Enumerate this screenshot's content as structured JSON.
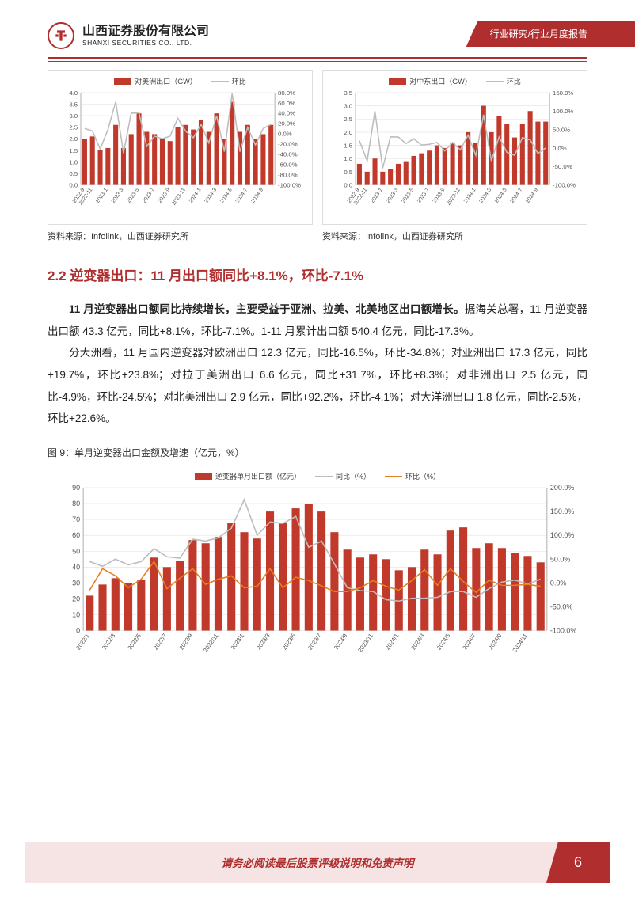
{
  "header": {
    "company_cn": "山西证券股份有限公司",
    "company_en": "SHANXI SECURITIES CO., LTD.",
    "banner": "行业研究/行业月度报告"
  },
  "colors": {
    "brand": "#b02e2e",
    "bar": "#c0392b",
    "grid": "#e0e0e0",
    "axis": "#888888",
    "line_grey": "#bdbdbd",
    "line_orange": "#e67e22",
    "text": "#333333",
    "footer_bg": "#f6e3e3"
  },
  "chart_left": {
    "type": "bar+line",
    "legend_bar": "对美洲出口（GW）",
    "legend_line": "环比",
    "y_left": {
      "min": 0,
      "max": 4,
      "step": 0.5
    },
    "y_right": {
      "min": -100,
      "max": 80,
      "step": 20,
      "suffix": "%"
    },
    "categories": [
      "2022-9",
      "2022-11",
      "",
      "2023-1",
      "",
      "2023-3",
      "",
      "2023-5",
      "",
      "2023-7",
      "",
      "2023-9",
      "",
      "2023-11",
      "",
      "2024-1",
      "",
      "2024-3",
      "",
      "2024-5",
      "",
      "2024-7",
      "",
      "2024-9",
      ""
    ],
    "bars": [
      2.0,
      2.1,
      1.5,
      1.6,
      2.6,
      1.6,
      2.2,
      3.1,
      2.3,
      2.2,
      2.0,
      1.9,
      2.5,
      2.6,
      2.4,
      2.8,
      2.3,
      3.1,
      2.0,
      3.6,
      2.3,
      2.6,
      2.0,
      2.2,
      2.6
    ],
    "line": [
      10,
      5,
      -30,
      8,
      62,
      -38,
      40,
      40,
      -25,
      -5,
      -10,
      -5,
      30,
      5,
      -8,
      18,
      -18,
      35,
      -35,
      78,
      -35,
      12,
      -22,
      10,
      18
    ],
    "x_label_fontsize": 7,
    "tick_fontsize": 8,
    "bar_color": "#c0392b",
    "line_color": "#bdbdbd",
    "grid_color": "#e0e0e0"
  },
  "chart_right": {
    "type": "bar+line",
    "legend_bar": "对中东出口（GW）",
    "legend_line": "环比",
    "y_left": {
      "min": 0,
      "max": 3.5,
      "step": 0.5
    },
    "y_right": {
      "min": -100,
      "max": 150,
      "step": 50,
      "suffix": "%"
    },
    "categories": [
      "2022-9",
      "2022-11",
      "",
      "2023-1",
      "",
      "2023-3",
      "",
      "2023-5",
      "",
      "2023-7",
      "",
      "2023-9",
      "",
      "2023-11",
      "",
      "2024-1",
      "",
      "2024-3",
      "",
      "2024-5",
      "",
      "2024-7",
      "",
      "2024-9",
      ""
    ],
    "bars": [
      0.8,
      0.5,
      1.0,
      0.5,
      0.6,
      0.8,
      0.9,
      1.1,
      1.2,
      1.3,
      1.5,
      1.4,
      1.6,
      1.5,
      2.0,
      1.6,
      3.0,
      2.0,
      2.6,
      2.3,
      1.8,
      2.3,
      2.8,
      2.4,
      2.4
    ],
    "line": [
      20,
      -35,
      100,
      -55,
      30,
      30,
      12,
      25,
      8,
      10,
      15,
      -8,
      15,
      -5,
      35,
      -20,
      90,
      -35,
      30,
      -12,
      -20,
      28,
      22,
      -15,
      0
    ],
    "x_label_fontsize": 7,
    "tick_fontsize": 8,
    "bar_color": "#c0392b",
    "line_color": "#bdbdbd",
    "grid_color": "#e0e0e0"
  },
  "chart_source": "资料来源：Infolink，山西证券研究所",
  "section": {
    "title": "2.2 逆变器出口：11 月出口额同比+8.1%，环比-7.1%",
    "p1_bold": "11 月逆变器出口额同比持续增长，主要受益于亚洲、拉美、北美地区出口额增长。",
    "p1_rest": "据海关总署，11 月逆变器出口额 43.3 亿元，同比+8.1%，环比-7.1%。1-11 月累计出口额 540.4 亿元，同比-17.3%。",
    "p2": "分大洲看，11 月国内逆变器对欧洲出口 12.3 亿元，同比-16.5%，环比-34.8%；对亚洲出口 17.3 亿元，同比+19.7%，环比+23.8%；对拉丁美洲出口 6.6 亿元，同比+31.7%，环比+8.3%；对非洲出口 2.5 亿元，同比-4.9%，环比-24.5%；对北美洲出口 2.9 亿元，同比+92.2%，环比-4.1%；对大洋洲出口 1.8 亿元，同比-2.5%，环比+22.6%。"
  },
  "fig9_caption": "图 9：单月逆变器出口金额及增速（亿元，%）",
  "chart_big": {
    "type": "bar+2lines",
    "legend_bar": "逆变器单月出口额（亿元）",
    "legend_line1": "同比（%）",
    "legend_line2": "环比（%）",
    "y_left": {
      "min": 0,
      "max": 90,
      "step": 10
    },
    "y_right": {
      "min": -100,
      "max": 200,
      "step": 50,
      "suffix": "%"
    },
    "categories": [
      "2022/1",
      "",
      "2022/3",
      "",
      "2022/5",
      "",
      "2022/7",
      "",
      "2022/9",
      "",
      "2022/11",
      "",
      "2023/1",
      "",
      "2023/3",
      "",
      "2023/5",
      "",
      "2023/7",
      "",
      "2023/9",
      "",
      "2023/11",
      "",
      "2024/1",
      "",
      "2024/3",
      "",
      "2024/5",
      "",
      "2024/7",
      "",
      "2024/9",
      "",
      "2024/11"
    ],
    "bars": [
      22,
      29,
      33,
      30,
      32,
      46,
      40,
      44,
      57,
      55,
      59,
      68,
      62,
      58,
      75,
      68,
      77,
      80,
      75,
      62,
      51,
      46,
      48,
      45,
      38,
      40,
      51,
      48,
      63,
      65,
      52,
      55,
      52,
      49,
      47,
      43
    ],
    "line_yoy": [
      45,
      35,
      50,
      38,
      45,
      72,
      55,
      52,
      92,
      88,
      95,
      115,
      175,
      100,
      128,
      125,
      140,
      75,
      88,
      40,
      -10,
      -16,
      -18,
      -35,
      -38,
      -32,
      -32,
      -30,
      -18,
      -18,
      -30,
      -12,
      2,
      6,
      -2,
      8
    ],
    "line_mom": [
      -15,
      30,
      15,
      -10,
      8,
      45,
      -12,
      10,
      30,
      -3,
      8,
      15,
      -10,
      -7,
      30,
      -10,
      12,
      5,
      -6,
      -18,
      -18,
      -10,
      5,
      -7,
      -15,
      5,
      28,
      -5,
      30,
      3,
      -20,
      6,
      -5,
      -5,
      -3,
      -7
    ],
    "bar_color": "#c0392b",
    "line1_color": "#bdbdbd",
    "line2_color": "#e67e22",
    "grid_color": "#e0e0e0",
    "x_label_fontsize": 7.5,
    "tick_fontsize": 9
  },
  "footer": {
    "text": "请务必阅读最后股票评级说明和免责声明",
    "page": "6"
  }
}
